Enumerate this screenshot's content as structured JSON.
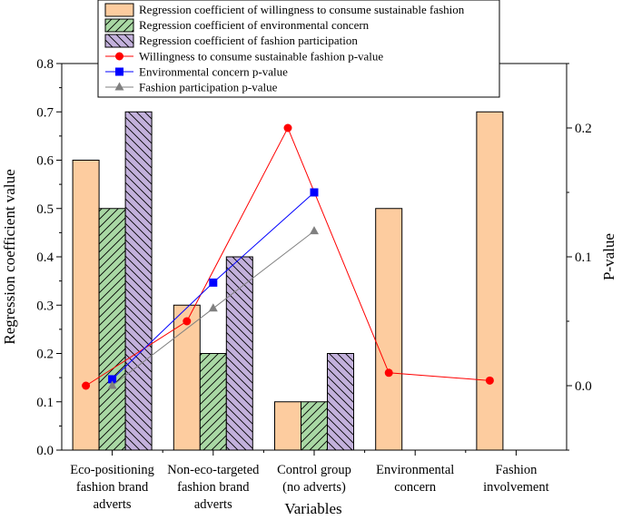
{
  "chart_data": {
    "type": "bar+line",
    "xlabel": "Variables",
    "ylabel_left": "Regression coefficient value",
    "ylabel_right": "P-value",
    "categories": [
      [
        "Eco-positioning",
        "fashion brand",
        "adverts"
      ],
      [
        "Non-eco-targeted",
        "fashion brand",
        "adverts"
      ],
      [
        "Control group",
        "(no adverts)"
      ],
      [
        "Environmental",
        "concern"
      ],
      [
        "Fashion",
        "involvement"
      ]
    ],
    "ylim_left": [
      0,
      0.8
    ],
    "yticks_left": [
      "0.0",
      "0.1",
      "0.2",
      "0.3",
      "0.4",
      "0.5",
      "0.6",
      "0.7",
      "0.8"
    ],
    "ylim_right": [
      -0.05,
      0.25
    ],
    "yticks_right_values": [
      0.0,
      0.1,
      0.2
    ],
    "yticks_right": [
      "0.0",
      "0.1",
      "0.2"
    ],
    "bar_series": [
      {
        "name": "Regression coefficient of willingness to consume sustainable fashion",
        "fill": "#fdcc9f",
        "hatch": "none",
        "values": [
          0.6,
          0.3,
          0.1,
          0.5,
          0.7
        ]
      },
      {
        "name": "Regression coefficient of environmental concern",
        "fill": "#a9d8a4",
        "hatch": "forward",
        "values": [
          0.5,
          0.2,
          0.1,
          null,
          null
        ]
      },
      {
        "name": "Regression coefficient of fashion participation",
        "fill": "#c3b1dc",
        "hatch": "back",
        "values": [
          0.7,
          0.4,
          0.2,
          null,
          null
        ]
      }
    ],
    "line_series": [
      {
        "name": "Willingness to consume sustainable fashion p-value",
        "color": "#ff0000",
        "marker": "circle",
        "bar_slot": 0,
        "values": [
          0.0,
          0.05,
          0.2,
          0.01,
          0.004
        ]
      },
      {
        "name": "Environmental concern p-value",
        "color": "#0000ff",
        "marker": "square",
        "bar_slot": 1,
        "values": [
          0.005,
          0.08,
          0.15,
          null,
          null
        ]
      },
      {
        "name": "Fashion participation p-value",
        "color": "#808080",
        "marker": "triangle",
        "bar_slot": 1,
        "values": [
          0.0,
          0.06,
          0.12,
          null,
          null
        ]
      }
    ]
  }
}
